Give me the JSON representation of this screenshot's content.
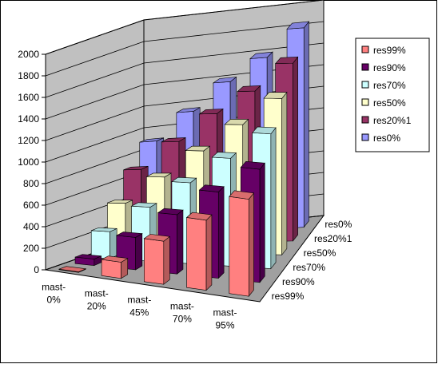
{
  "chart_data": {
    "type": "bar3d",
    "categories": [
      "mast-0%",
      "mast-20%",
      "mast-45%",
      "mast-70%",
      "mast-95%"
    ],
    "series": [
      {
        "name": "res99%",
        "color": "#ff8080",
        "values": [
          5,
          150,
          400,
          650,
          900
        ]
      },
      {
        "name": "res90%",
        "color": "#660066",
        "values": [
          60,
          300,
          550,
          800,
          1050
        ]
      },
      {
        "name": "res70%",
        "color": "#ccffff",
        "values": [
          250,
          500,
          750,
          1000,
          1250
        ]
      },
      {
        "name": "res50%",
        "color": "#ffffcc",
        "values": [
          450,
          700,
          950,
          1200,
          1450
        ]
      },
      {
        "name": "res20%1",
        "color": "#993366",
        "values": [
          700,
          950,
          1200,
          1400,
          1650
        ]
      },
      {
        "name": "res0%",
        "color": "#9999ff",
        "values": [
          900,
          1150,
          1400,
          1600,
          1850
        ]
      }
    ],
    "ylim": [
      0,
      2000
    ],
    "yticks": [
      0,
      200,
      400,
      600,
      800,
      1000,
      1200,
      1400,
      1600,
      1800,
      2000
    ],
    "grid": true,
    "legend": "right"
  }
}
